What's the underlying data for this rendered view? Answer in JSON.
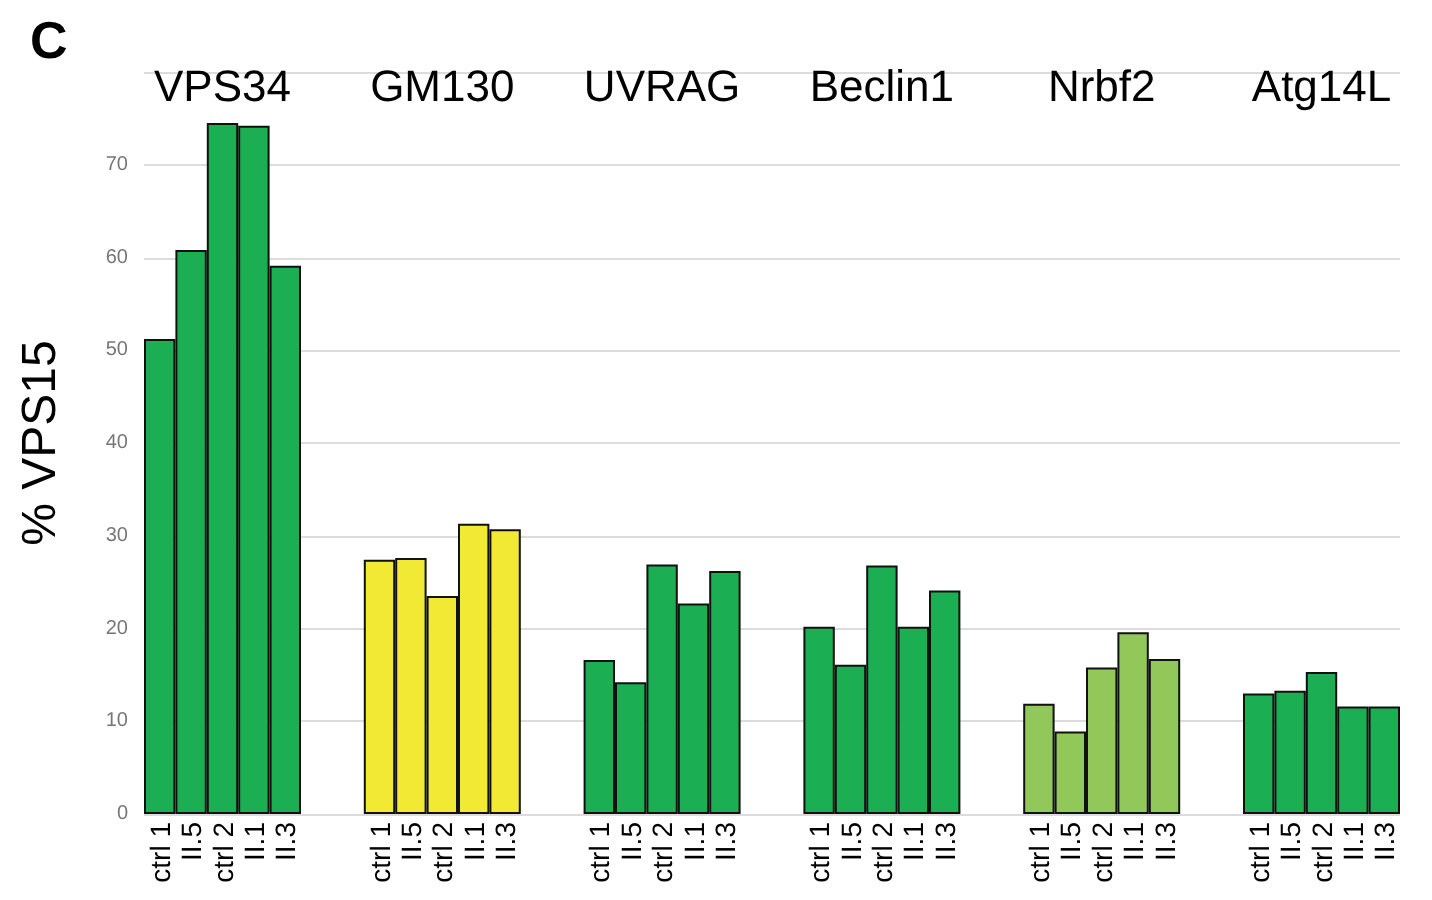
{
  "chart_data": {
    "type": "bar",
    "title": "C",
    "ylabel": "% VPS15",
    "categories": [
      "ctrl 1",
      "II.5",
      "ctrl 2",
      "II.1",
      "II.3",
      null,
      null,
      "ctrl 1",
      "II.5",
      "ctrl 2",
      "II.1",
      "II.3",
      null,
      null,
      "ctrl 1",
      "II.5",
      "ctrl 2",
      "II.1",
      "II.3",
      null,
      null,
      "ctrl 1",
      "II.5",
      "ctrl 2",
      "II.1",
      "II.3",
      null,
      null,
      "ctrl 1",
      "II.5",
      "ctrl 2",
      "II.1",
      "II.3",
      null,
      null,
      "ctrl 1",
      "II.5",
      "ctrl 2",
      "II.1",
      "II.3"
    ],
    "series": [
      {
        "color": "#1cae52",
        "values": [
          51.2,
          60.8,
          74.5,
          74.2,
          59.1,
          null,
          null,
          null,
          null,
          null,
          null,
          null,
          null,
          null,
          null,
          null,
          null,
          null,
          null,
          null,
          null,
          null,
          null,
          null,
          null,
          null,
          null,
          null,
          null,
          null,
          null,
          null,
          null,
          null,
          null,
          null,
          null,
          null,
          null,
          null
        ]
      },
      {
        "color": "#f2e935",
        "values": [
          null,
          null,
          null,
          null,
          null,
          null,
          null,
          27.4,
          27.6,
          23.5,
          31.3,
          30.7,
          null,
          null,
          null,
          null,
          null,
          null,
          null,
          null,
          null,
          null,
          null,
          null,
          null,
          null,
          null,
          null,
          null,
          null,
          null,
          null,
          null,
          null,
          null,
          null,
          null,
          null,
          null,
          null
        ]
      },
      {
        "color": "#1cae52",
        "values": [
          null,
          null,
          null,
          null,
          null,
          null,
          null,
          null,
          null,
          null,
          null,
          null,
          null,
          null,
          16.6,
          14.2,
          26.9,
          22.7,
          26.2,
          null,
          null,
          null,
          null,
          null,
          null,
          null,
          null,
          null,
          null,
          null,
          null,
          null,
          null,
          null,
          null,
          null,
          null,
          null,
          null,
          null
        ]
      },
      {
        "color": "#1cae52",
        "values": [
          null,
          null,
          null,
          null,
          null,
          null,
          null,
          null,
          null,
          null,
          null,
          null,
          null,
          null,
          null,
          null,
          null,
          null,
          null,
          null,
          null,
          20.2,
          16.1,
          26.8,
          20.2,
          24.1,
          null,
          null,
          null,
          null,
          null,
          null,
          null,
          null,
          null,
          null,
          null,
          null,
          null,
          null
        ]
      },
      {
        "color": "#92c85a",
        "values": [
          null,
          null,
          null,
          null,
          null,
          null,
          null,
          null,
          null,
          null,
          null,
          null,
          null,
          null,
          null,
          null,
          null,
          null,
          null,
          null,
          null,
          null,
          null,
          null,
          null,
          null,
          null,
          null,
          11.9,
          8.9,
          15.8,
          19.6,
          16.7,
          null,
          null,
          null,
          null,
          null,
          null,
          null
        ]
      },
      {
        "color": "#1cae52",
        "values": [
          null,
          null,
          null,
          null,
          null,
          null,
          null,
          null,
          null,
          null,
          null,
          null,
          null,
          null,
          null,
          null,
          null,
          null,
          null,
          null,
          null,
          null,
          null,
          null,
          null,
          null,
          null,
          null,
          null,
          null,
          null,
          null,
          null,
          null,
          null,
          13.0,
          13.3,
          15.3,
          11.6,
          11.6
        ]
      }
    ],
    "annotations": [
      "VPS34",
      "GM130",
      "UVRAG",
      "Beclin1",
      "Nrbf2",
      "Atg14L"
    ],
    "ylim": [
      0,
      80
    ],
    "yticks": [
      0,
      10,
      20,
      30,
      40,
      50,
      60,
      70,
      {
        "value": 80,
        "label": null
      }
    ],
    "grid": "y"
  }
}
